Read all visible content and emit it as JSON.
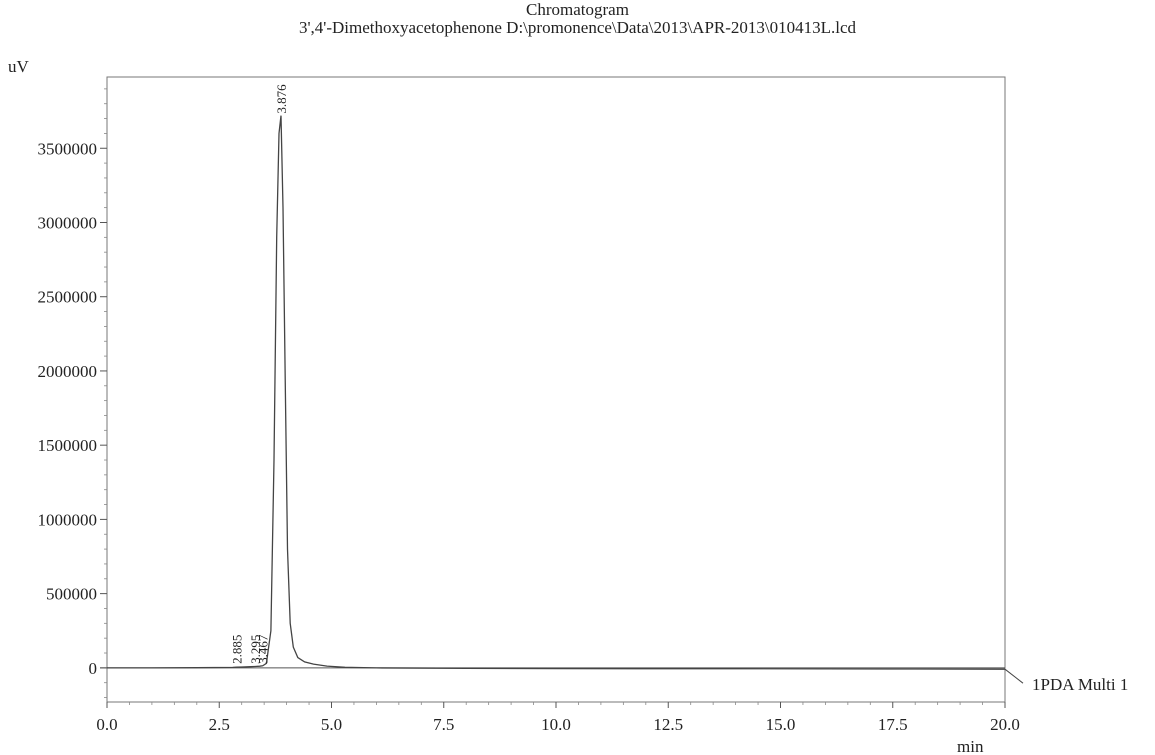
{
  "chart_data": {
    "type": "line",
    "title": "Chromatogram",
    "subtitle": "3',4'-Dimethoxyacetophenone D:\\promonence\\Data\\2013\\APR-2013\\010413L.lcd",
    "ylabel": "uV",
    "xlabel": "min",
    "xlim": [
      0,
      20
    ],
    "ylim": [
      -230000,
      3980000
    ],
    "x_ticks": [
      0,
      2.5,
      5,
      7.5,
      10,
      12.5,
      15,
      17.5,
      20
    ],
    "x_tick_labels": [
      "0.0",
      "2.5",
      "5.0",
      "7.5",
      "10.0",
      "12.5",
      "15.0",
      "17.5",
      "20.0"
    ],
    "y_ticks": [
      0,
      500000,
      1000000,
      1500000,
      2000000,
      2500000,
      3000000,
      3500000
    ],
    "y_tick_labels": [
      "0",
      "500000",
      "1000000",
      "1500000",
      "2000000",
      "2500000",
      "3000000",
      "3500000"
    ],
    "grid": false,
    "series": [
      {
        "name": "1PDA Multi 1",
        "x": [
          0,
          1,
          2,
          2.8,
          2.885,
          3.0,
          3.2,
          3.295,
          3.4,
          3.467,
          3.55,
          3.65,
          3.72,
          3.78,
          3.83,
          3.876,
          3.92,
          3.97,
          4.02,
          4.08,
          4.15,
          4.25,
          4.4,
          4.6,
          4.9,
          5.3,
          6,
          8,
          10,
          12,
          14,
          16,
          18,
          20
        ],
        "y": [
          0,
          0,
          1000,
          3000,
          5000,
          6000,
          8000,
          9000,
          11000,
          14000,
          30000,
          250000,
          1400000,
          2900000,
          3600000,
          3720000,
          3100000,
          1900000,
          800000,
          300000,
          140000,
          70000,
          40000,
          25000,
          12000,
          4000,
          0,
          -3000,
          -5000,
          -6000,
          -6000,
          -7000,
          -8000,
          -9000
        ]
      }
    ],
    "peak_labels": [
      "2.885",
      "3.295",
      "3.467",
      "3.876"
    ],
    "peak_label_x": [
      2.885,
      3.295,
      3.467,
      3.876
    ]
  }
}
